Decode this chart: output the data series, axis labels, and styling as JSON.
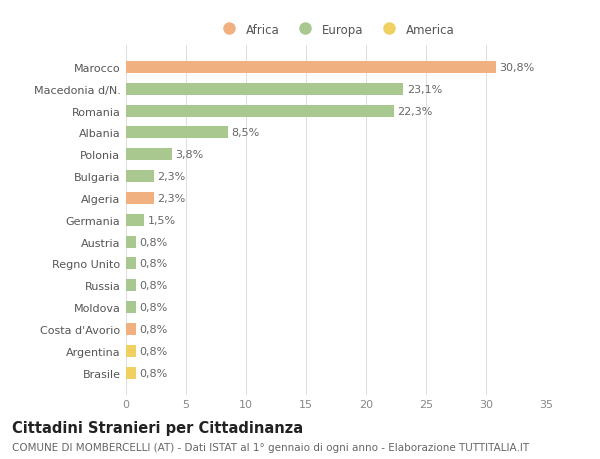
{
  "categories": [
    "Brasile",
    "Argentina",
    "Costa d'Avorio",
    "Moldova",
    "Russia",
    "Regno Unito",
    "Austria",
    "Germania",
    "Algeria",
    "Bulgaria",
    "Polonia",
    "Albania",
    "Romania",
    "Macedonia d/N.",
    "Marocco"
  ],
  "values": [
    0.8,
    0.8,
    0.8,
    0.8,
    0.8,
    0.8,
    0.8,
    1.5,
    2.3,
    2.3,
    3.8,
    8.5,
    22.3,
    23.1,
    30.8
  ],
  "labels": [
    "0,8%",
    "0,8%",
    "0,8%",
    "0,8%",
    "0,8%",
    "0,8%",
    "0,8%",
    "1,5%",
    "2,3%",
    "2,3%",
    "3,8%",
    "8,5%",
    "22,3%",
    "23,1%",
    "30,8%"
  ],
  "continents": [
    "America",
    "America",
    "Africa",
    "Europa",
    "Europa",
    "Europa",
    "Europa",
    "Europa",
    "Africa",
    "Europa",
    "Europa",
    "Europa",
    "Europa",
    "Europa",
    "Africa"
  ],
  "colors": {
    "Africa": "#F0B080",
    "Europa": "#A8C890",
    "America": "#F0D060"
  },
  "legend_labels": [
    "Africa",
    "Europa",
    "America"
  ],
  "legend_colors": [
    "#F0B080",
    "#A8C890",
    "#F0D060"
  ],
  "title": "Cittadini Stranieri per Cittadinanza",
  "subtitle": "COMUNE DI MOMBERCELLI (AT) - Dati ISTAT al 1° gennaio di ogni anno - Elaborazione TUTTITALIA.IT",
  "xlim": [
    0,
    35
  ],
  "xticks": [
    0,
    5,
    10,
    15,
    20,
    25,
    30,
    35
  ],
  "background_color": "#ffffff",
  "grid_color": "#e0e0e0",
  "bar_height": 0.55,
  "label_fontsize": 8,
  "tick_fontsize": 8,
  "title_fontsize": 10.5,
  "subtitle_fontsize": 7.5
}
